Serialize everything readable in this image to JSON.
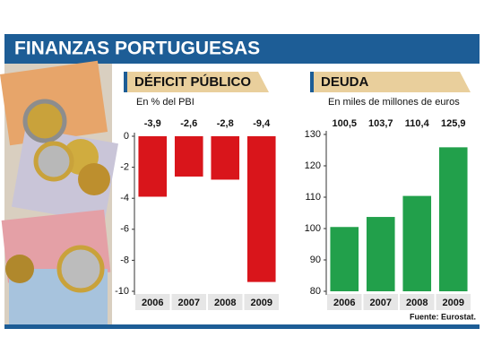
{
  "header": {
    "title": "FINANZAS PORTUGUESAS"
  },
  "source": "Fuente: Eurostat.",
  "chart_data": [
    {
      "type": "bar",
      "title": "DÉFICIT PÚBLICO",
      "subtitle": "En % del PBI",
      "categories": [
        "2006",
        "2007",
        "2008",
        "2009"
      ],
      "values": [
        -3.9,
        -2.6,
        -2.8,
        -9.4
      ],
      "value_labels": [
        "-3,9",
        "-2,6",
        "-2,8",
        "-9,4"
      ],
      "color": "#d9151b",
      "ylim": [
        -10,
        0
      ],
      "yticks": [
        0,
        -2,
        -4,
        -6,
        -8,
        -10
      ]
    },
    {
      "type": "bar",
      "title": "DEUDA",
      "subtitle": "En miles de millones de euros",
      "categories": [
        "2006",
        "2007",
        "2008",
        "2009"
      ],
      "values": [
        100.5,
        103.7,
        110.4,
        125.9
      ],
      "value_labels": [
        "100,5",
        "103,7",
        "110,4",
        "125,9"
      ],
      "color": "#22a04b",
      "ylim": [
        80,
        130
      ],
      "yticks": [
        80,
        90,
        100,
        110,
        120,
        130
      ]
    }
  ]
}
